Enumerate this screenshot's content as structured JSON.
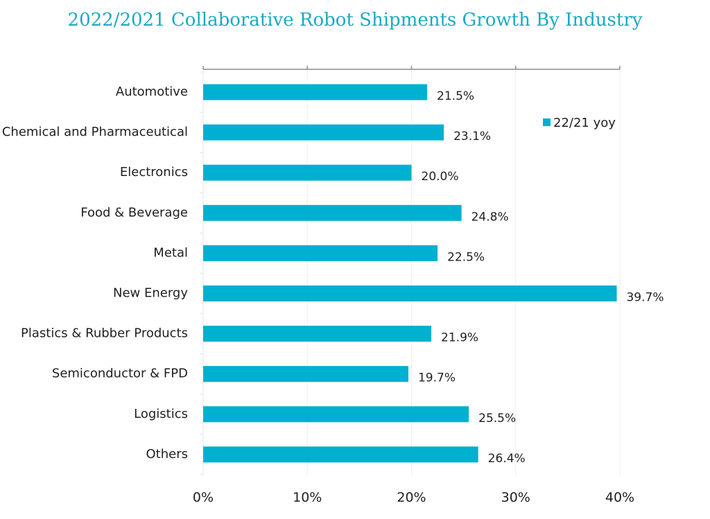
{
  "chart_data": {
    "type": "bar",
    "orientation": "horizontal",
    "title": "2022/2021 Collaborative Robot Shipments Growth By Industry",
    "categories": [
      "Automotive",
      "Chemical and Pharmaceutical",
      "Electronics",
      "Food & Beverage",
      "Metal",
      "New Energy",
      "Plastics & Rubber Products",
      "Semiconductor & FPD",
      "Logistics",
      "Others"
    ],
    "series": [
      {
        "name": "22/21 yoy",
        "values": [
          21.5,
          23.1,
          20.0,
          24.8,
          22.5,
          39.7,
          21.9,
          19.7,
          25.5,
          26.4
        ],
        "value_labels": [
          "21.5%",
          "23.1%",
          "20.0%",
          "24.8%",
          "22.5%",
          "39.7%",
          "21.9%",
          "19.7%",
          "25.5%",
          "26.4%"
        ]
      }
    ],
    "xlim": [
      0,
      40
    ],
    "xticks": [
      0,
      10,
      20,
      30,
      40
    ],
    "xtick_labels": [
      "0%",
      "10%",
      "20%",
      "30%",
      "40%"
    ],
    "grid": true,
    "legend_position": "top-right",
    "colors": {
      "bar": "#00b0d0",
      "title": "#1aa9c4",
      "axis": "#8a8a8a",
      "grid": "#eeeeee"
    }
  }
}
